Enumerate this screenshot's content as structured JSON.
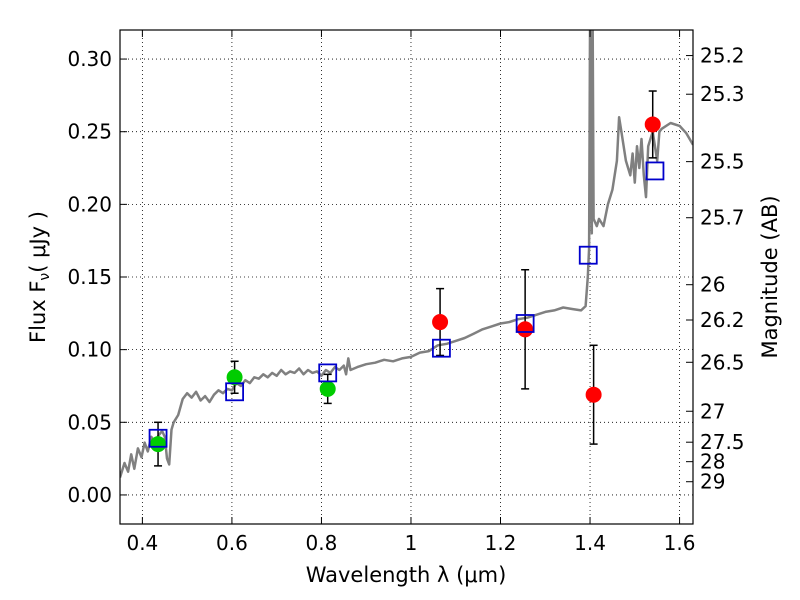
{
  "chart_data": {
    "type": "scatter",
    "xlabel": "Wavelength  λ (μm)",
    "ylabel": "Flux  F",
    "ylabel_sub": "ν",
    "ylabel_unit": "( μJy )",
    "ylabel_right": "Magnitude (AB)",
    "xlim": [
      0.35,
      1.63
    ],
    "ylim": [
      -0.02,
      0.32
    ],
    "grid": true,
    "x_ticks": [
      0.4,
      0.6,
      0.8,
      1.0,
      1.2,
      1.4,
      1.6
    ],
    "x_tick_labels": [
      "0.4",
      "0.6",
      "0.8",
      "1",
      "1.2",
      "1.4",
      "1.6"
    ],
    "y_ticks": [
      0.0,
      0.05,
      0.1,
      0.15,
      0.2,
      0.25,
      0.3
    ],
    "y_tick_labels": [
      "0.00",
      "0.05",
      "0.10",
      "0.15",
      "0.20",
      "0.25",
      "0.30"
    ],
    "right_ticks": [
      {
        "label": "25.2",
        "flux": 0.3024
      },
      {
        "label": "25.3",
        "flux": 0.2758
      },
      {
        "label": "25.5",
        "flux": 0.2294
      },
      {
        "label": "25.7",
        "flux": 0.1908
      },
      {
        "label": "26",
        "flux": 0.1447
      },
      {
        "label": "26.2",
        "flux": 0.1204
      },
      {
        "label": "26.5",
        "flux": 0.0913
      },
      {
        "label": "27",
        "flux": 0.0576
      },
      {
        "label": "27.5",
        "flux": 0.0363
      },
      {
        "label": "28",
        "flux": 0.0229
      },
      {
        "label": "29",
        "flux": 0.0091
      }
    ],
    "series": [
      {
        "marker": "circle",
        "color": "#00cc00",
        "points": [
          {
            "x": 0.435,
            "y": 0.035,
            "err": 0.015
          },
          {
            "x": 0.606,
            "y": 0.081,
            "err": 0.011
          },
          {
            "x": 0.814,
            "y": 0.073,
            "err": 0.01
          }
        ]
      },
      {
        "marker": "circle",
        "color": "#ff0000",
        "points": [
          {
            "x": 1.065,
            "y": 0.119,
            "err": 0.023
          },
          {
            "x": 1.255,
            "y": 0.114,
            "err": 0.041
          },
          {
            "x": 1.408,
            "y": 0.069,
            "err": 0.034
          },
          {
            "x": 1.54,
            "y": 0.255,
            "err": 0.023
          }
        ]
      },
      {
        "marker": "square-open",
        "color": "#0000cc",
        "points": [
          {
            "x": 0.435,
            "y": 0.039
          },
          {
            "x": 0.606,
            "y": 0.071
          },
          {
            "x": 0.814,
            "y": 0.084
          },
          {
            "x": 1.068,
            "y": 0.101
          },
          {
            "x": 1.255,
            "y": 0.118
          },
          {
            "x": 1.396,
            "y": 0.165
          },
          {
            "x": 1.545,
            "y": 0.223
          }
        ]
      }
    ],
    "model_color": "#808080",
    "model_spectrum": [
      [
        0.35,
        0.012
      ],
      [
        0.36,
        0.022
      ],
      [
        0.368,
        0.016
      ],
      [
        0.375,
        0.028
      ],
      [
        0.382,
        0.018
      ],
      [
        0.39,
        0.032
      ],
      [
        0.398,
        0.026
      ],
      [
        0.405,
        0.036
      ],
      [
        0.412,
        0.03
      ],
      [
        0.42,
        0.04
      ],
      [
        0.428,
        0.036
      ],
      [
        0.436,
        0.041
      ],
      [
        0.444,
        0.044
      ],
      [
        0.45,
        0.04
      ],
      [
        0.455,
        0.025
      ],
      [
        0.46,
        0.021
      ],
      [
        0.465,
        0.045
      ],
      [
        0.47,
        0.05
      ],
      [
        0.48,
        0.055
      ],
      [
        0.49,
        0.066
      ],
      [
        0.5,
        0.07
      ],
      [
        0.51,
        0.067
      ],
      [
        0.52,
        0.071
      ],
      [
        0.53,
        0.065
      ],
      [
        0.54,
        0.068
      ],
      [
        0.55,
        0.064
      ],
      [
        0.56,
        0.069
      ],
      [
        0.57,
        0.072
      ],
      [
        0.58,
        0.07
      ],
      [
        0.59,
        0.073
      ],
      [
        0.6,
        0.072
      ],
      [
        0.61,
        0.077
      ],
      [
        0.62,
        0.075
      ],
      [
        0.63,
        0.079
      ],
      [
        0.64,
        0.077
      ],
      [
        0.65,
        0.081
      ],
      [
        0.66,
        0.08
      ],
      [
        0.67,
        0.083
      ],
      [
        0.68,
        0.081
      ],
      [
        0.69,
        0.084
      ],
      [
        0.7,
        0.082
      ],
      [
        0.71,
        0.086
      ],
      [
        0.72,
        0.083
      ],
      [
        0.73,
        0.085
      ],
      [
        0.74,
        0.084
      ],
      [
        0.75,
        0.087
      ],
      [
        0.76,
        0.083
      ],
      [
        0.77,
        0.086
      ],
      [
        0.78,
        0.084
      ],
      [
        0.79,
        0.085
      ],
      [
        0.8,
        0.082
      ],
      [
        0.81,
        0.086
      ],
      [
        0.82,
        0.084
      ],
      [
        0.83,
        0.088
      ],
      [
        0.84,
        0.086
      ],
      [
        0.85,
        0.089
      ],
      [
        0.855,
        0.083
      ],
      [
        0.86,
        0.094
      ],
      [
        0.865,
        0.086
      ],
      [
        0.88,
        0.088
      ],
      [
        0.9,
        0.09
      ],
      [
        0.92,
        0.091
      ],
      [
        0.94,
        0.093
      ],
      [
        0.96,
        0.092
      ],
      [
        0.98,
        0.094
      ],
      [
        1.0,
        0.095
      ],
      [
        1.02,
        0.098
      ],
      [
        1.04,
        0.099
      ],
      [
        1.06,
        0.103
      ],
      [
        1.08,
        0.104
      ],
      [
        1.1,
        0.106
      ],
      [
        1.12,
        0.108
      ],
      [
        1.14,
        0.111
      ],
      [
        1.16,
        0.114
      ],
      [
        1.18,
        0.116
      ],
      [
        1.2,
        0.118
      ],
      [
        1.22,
        0.119
      ],
      [
        1.24,
        0.121
      ],
      [
        1.26,
        0.122
      ],
      [
        1.28,
        0.124
      ],
      [
        1.3,
        0.126
      ],
      [
        1.32,
        0.127
      ],
      [
        1.34,
        0.129
      ],
      [
        1.36,
        0.128
      ],
      [
        1.38,
        0.127
      ],
      [
        1.39,
        0.13
      ],
      [
        1.395,
        0.15
      ],
      [
        1.398,
        0.17
      ],
      [
        1.4,
        0.32
      ],
      [
        1.402,
        0.32
      ],
      [
        1.404,
        0.18
      ],
      [
        1.406,
        0.32
      ],
      [
        1.408,
        0.19
      ],
      [
        1.415,
        0.185
      ],
      [
        1.42,
        0.19
      ],
      [
        1.43,
        0.185
      ],
      [
        1.44,
        0.2
      ],
      [
        1.45,
        0.21
      ],
      [
        1.46,
        0.23
      ],
      [
        1.465,
        0.26
      ],
      [
        1.47,
        0.25
      ],
      [
        1.48,
        0.23
      ],
      [
        1.49,
        0.22
      ],
      [
        1.495,
        0.235
      ],
      [
        1.5,
        0.215
      ],
      [
        1.505,
        0.24
      ],
      [
        1.51,
        0.225
      ],
      [
        1.515,
        0.245
      ],
      [
        1.52,
        0.22
      ],
      [
        1.525,
        0.205
      ],
      [
        1.53,
        0.24
      ],
      [
        1.54,
        0.25
      ],
      [
        1.55,
        0.23
      ],
      [
        1.555,
        0.25
      ],
      [
        1.56,
        0.252
      ],
      [
        1.58,
        0.256
      ],
      [
        1.6,
        0.254
      ],
      [
        1.615,
        0.249
      ],
      [
        1.63,
        0.241
      ]
    ]
  }
}
